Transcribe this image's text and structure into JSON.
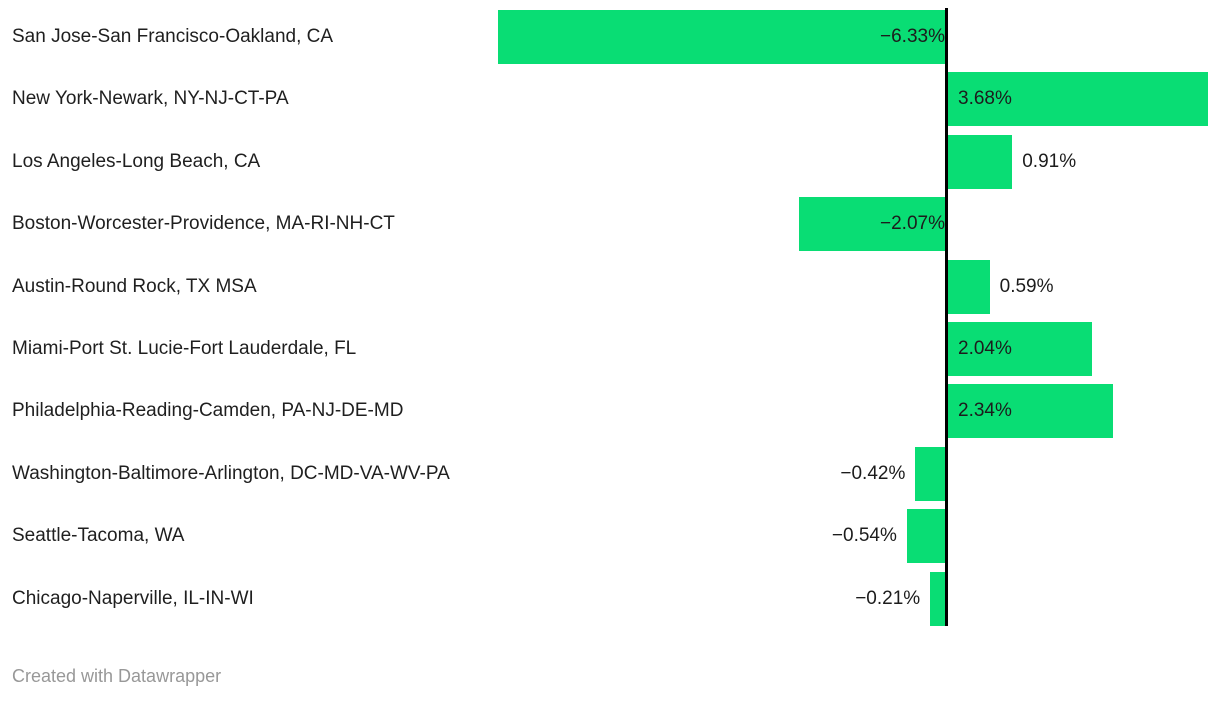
{
  "attribution": "Created with Datawrapper",
  "colors": {
    "bar": "#09dd74",
    "axis": "#000000",
    "category_text": "#1f1f1f",
    "value_text": "#1c1c1c",
    "attribution_text": "#989898",
    "background": "#ffffff"
  },
  "chart_data": {
    "type": "bar",
    "orientation": "horizontal",
    "title": "",
    "xlabel": "",
    "ylabel": "",
    "unit": "%",
    "baseline": 0,
    "xlim": [
      -6.6,
      3.9
    ],
    "grid": false,
    "legend": false,
    "categories": [
      "San Jose-San Francisco-Oakland, CA",
      "New York-Newark, NY-NJ-CT-PA",
      "Los Angeles-Long Beach, CA",
      "Boston-Worcester-Providence, MA-RI-NH-CT",
      "Austin-Round Rock, TX MSA",
      "Miami-Port St. Lucie-Fort Lauderdale, FL",
      "Philadelphia-Reading-Camden, PA-NJ-DE-MD",
      "Washington-Baltimore-Arlington, DC-MD-VA-WV-PA",
      "Seattle-Tacoma, WA",
      "Chicago-Naperville, IL-IN-WI"
    ],
    "values": [
      -6.33,
      3.68,
      0.91,
      -2.07,
      0.59,
      2.04,
      2.34,
      -0.42,
      -0.54,
      -0.21
    ],
    "value_labels": [
      "−6.33%",
      "3.68%",
      "0.91%",
      "−2.07%",
      "0.59%",
      "2.04%",
      "2.34%",
      "−0.42%",
      "−0.54%",
      "−0.21%"
    ]
  }
}
